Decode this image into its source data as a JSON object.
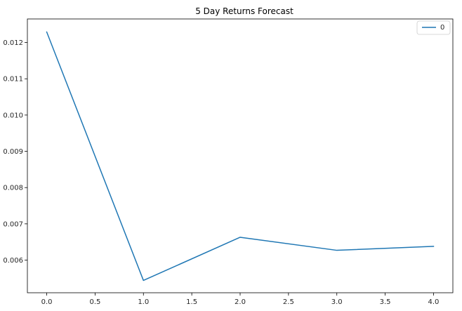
{
  "chart_data": {
    "type": "line",
    "title": "5 Day Returns Forecast",
    "xlabel": "",
    "ylabel": "",
    "x": [
      0.0,
      1.0,
      2.0,
      3.0,
      4.0
    ],
    "series": [
      {
        "name": "0",
        "values": [
          0.01229,
          0.00544,
          0.00663,
          0.00627,
          0.00638
        ],
        "color": "#1f77b4"
      }
    ],
    "xlim": [
      -0.2,
      4.2
    ],
    "ylim": [
      0.0051,
      0.01265
    ],
    "xticks": [
      0.0,
      0.5,
      1.0,
      1.5,
      2.0,
      2.5,
      3.0,
      3.5,
      4.0
    ],
    "xtick_labels": [
      "0.0",
      "0.5",
      "1.0",
      "1.5",
      "2.0",
      "2.5",
      "3.0",
      "3.5",
      "4.0"
    ],
    "yticks": [
      0.006,
      0.007,
      0.008,
      0.009,
      0.01,
      0.011,
      0.012
    ],
    "ytick_labels": [
      "0.006",
      "0.007",
      "0.008",
      "0.009",
      "0.010",
      "0.011",
      "0.012"
    ],
    "grid": false,
    "legend_position": "top-right"
  }
}
